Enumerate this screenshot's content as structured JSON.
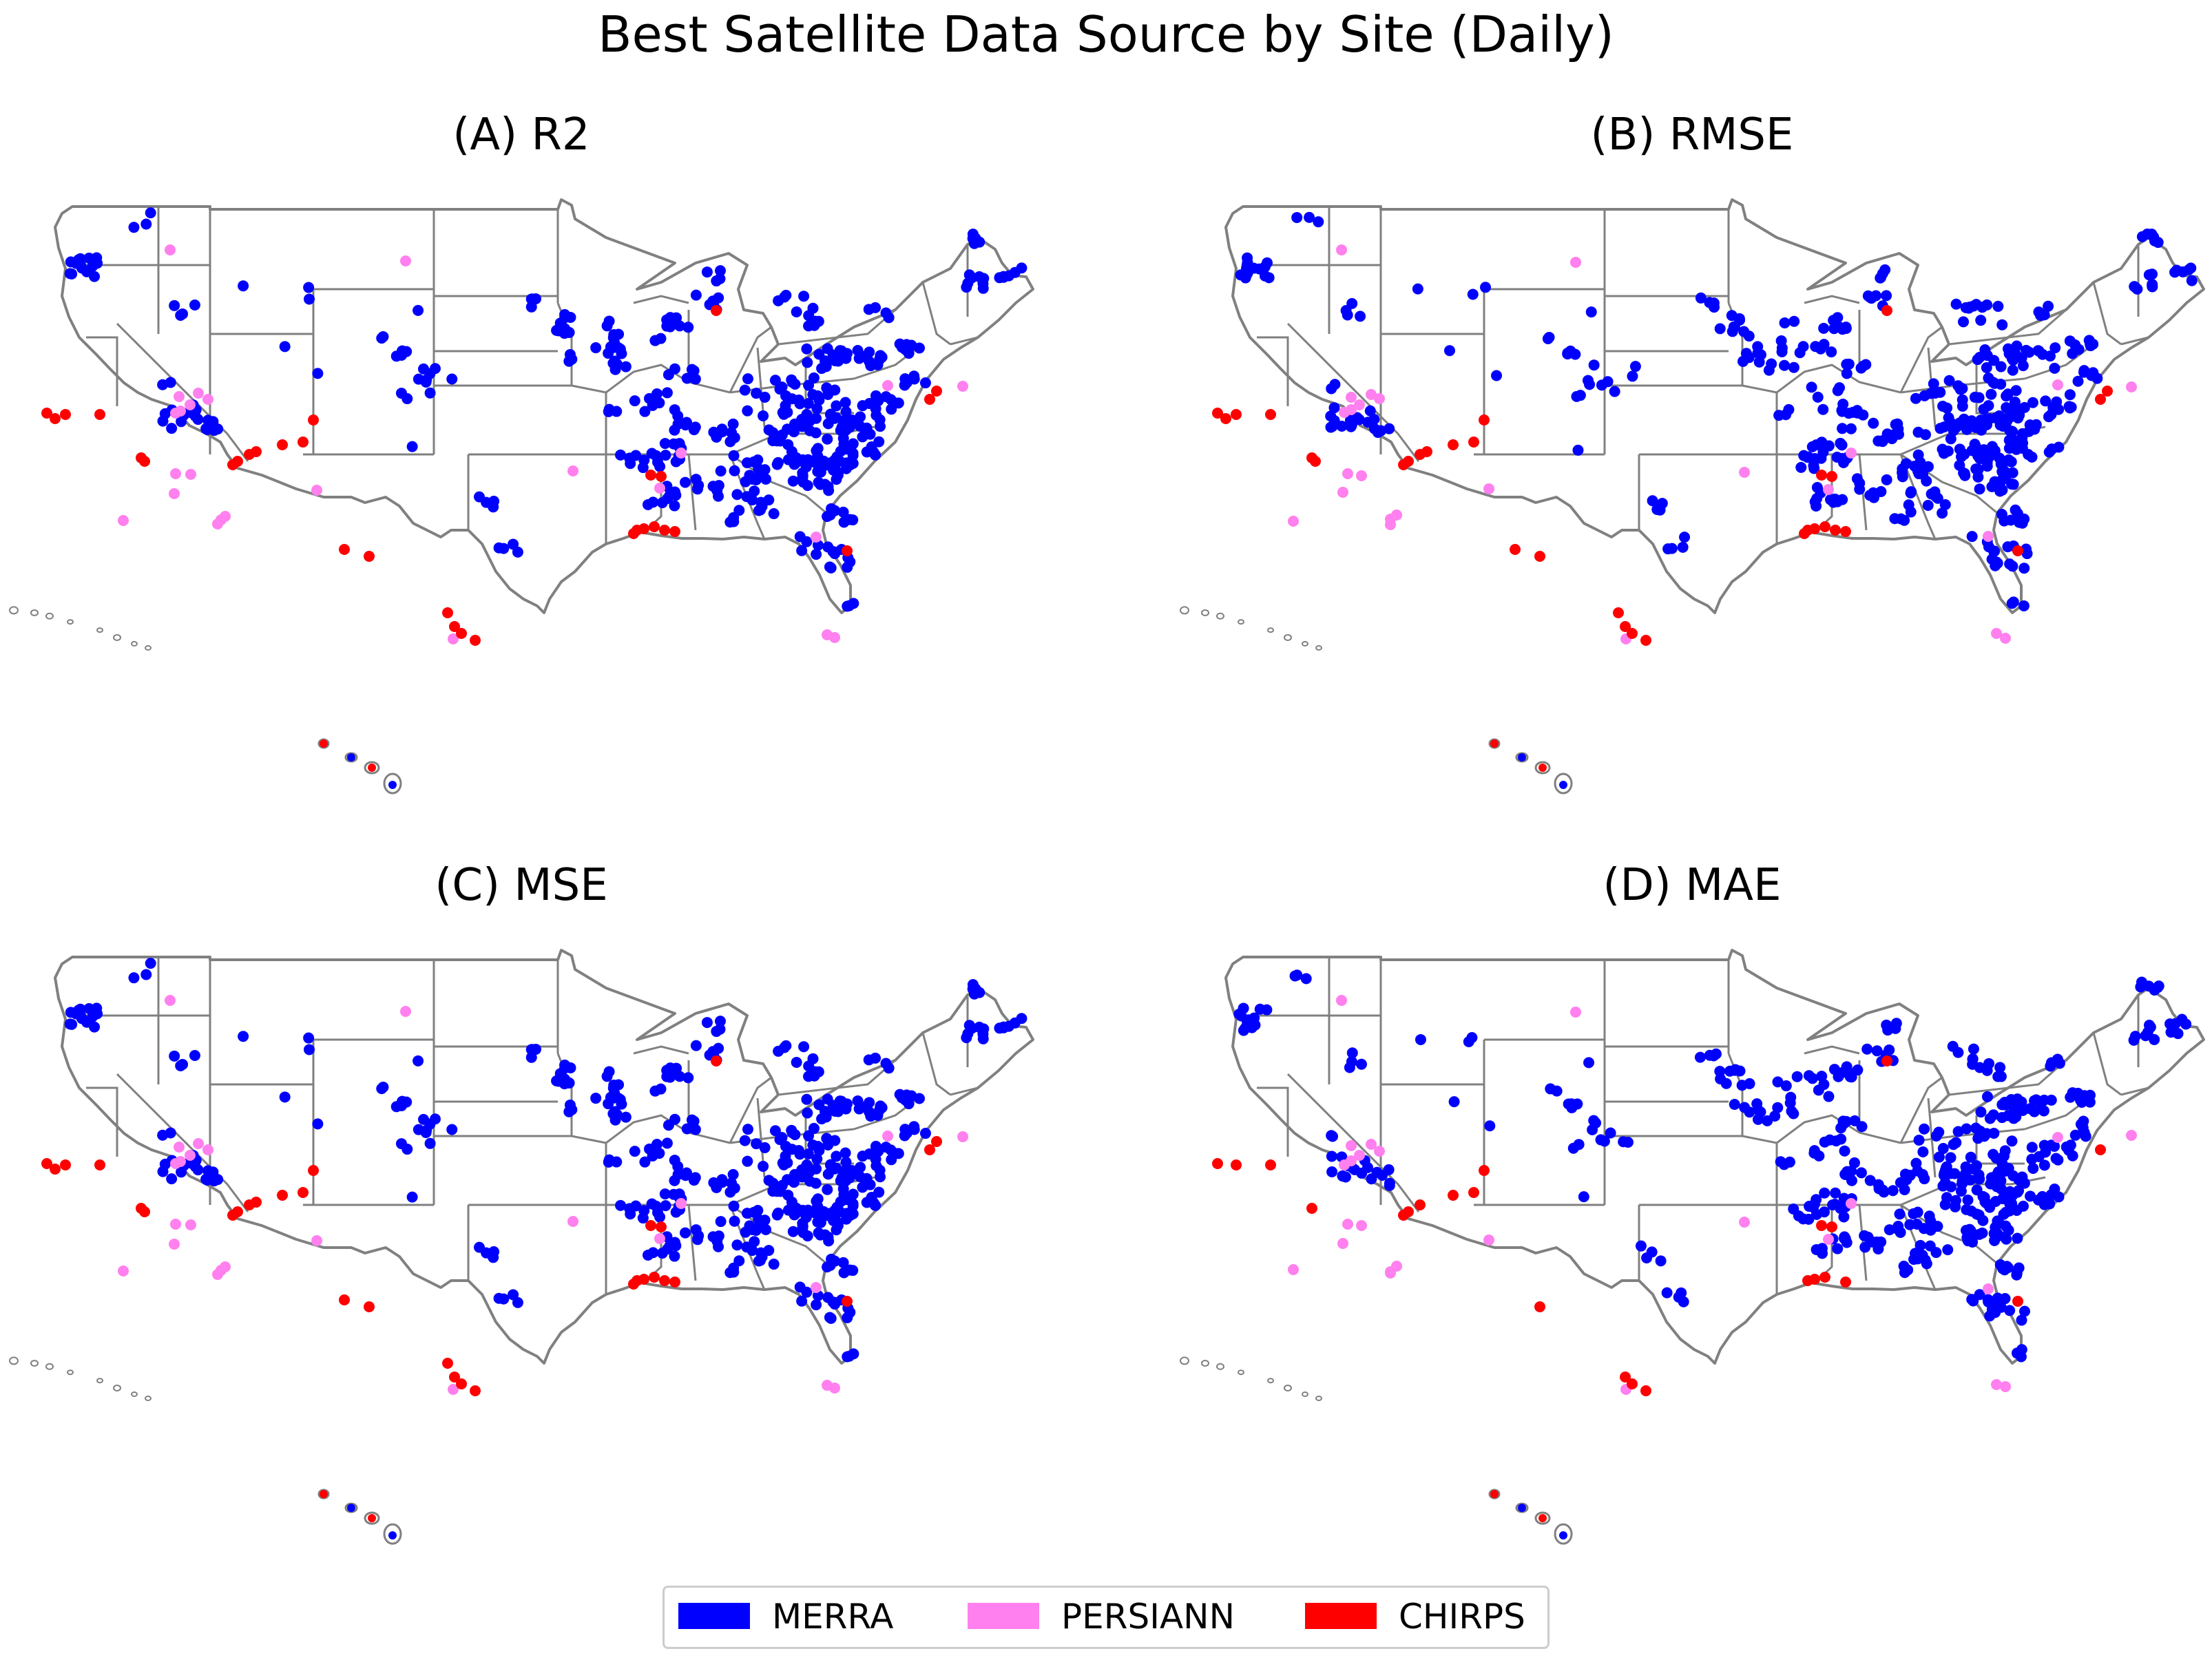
{
  "title": "Best Satellite Data Source by Site (Daily)",
  "colors": {
    "MERRA": "#0000ff",
    "PERSIANN": "#ff80ee",
    "CHIRPS": "#ff0000",
    "boundary": "#808080"
  },
  "legend": [
    {
      "key": "MERRA",
      "label": "MERRA"
    },
    {
      "key": "PERSIANN",
      "label": "PERSIANN"
    },
    {
      "key": "CHIRPS",
      "label": "CHIRPS"
    }
  ],
  "panels": [
    {
      "id": "a",
      "title": "(A) R2"
    },
    {
      "id": "b",
      "title": "(B) RMSE"
    },
    {
      "id": "c",
      "title": "(C) MSE"
    },
    {
      "id": "d",
      "title": "(D) MAE"
    }
  ]
}
